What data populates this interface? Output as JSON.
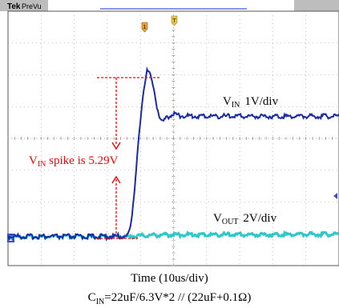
{
  "header": {
    "brand": "Tek",
    "mode": "PreVu"
  },
  "annotations": {
    "spike_prefix": "V",
    "spike_sub": "IN",
    "spike_suffix": " spike is 5.29V"
  },
  "channel_labels": [
    {
      "main": "V",
      "sub": "IN",
      "scale": "1V/div"
    },
    {
      "main": "V",
      "sub": "OUT",
      "scale": "2V/div"
    }
  ],
  "markers": {
    "ch1": "1",
    "trigger": "T"
  },
  "caption": {
    "line1": "Time (10us/div)",
    "line2_a": "C",
    "line2_sub": "IN",
    "line2_b": "=22uF/6.3V*2 // (22uF+0.1Ω)"
  },
  "colors": {
    "vin": "#1a2aa8",
    "vout": "#2fc8c8",
    "annotation": "#ff0000",
    "grid": "#9a9a9a",
    "header_bg": "#bdbdbd"
  },
  "chart_data": {
    "type": "line",
    "x_units": "us",
    "x_per_div": 10,
    "grid_divisions": [
      10,
      8
    ],
    "grid": true,
    "series": [
      {
        "name": "VIN",
        "units_per_div": "1V/div",
        "x": [
          0,
          10,
          20,
          30,
          36,
          37,
          38,
          39,
          40,
          41,
          42,
          43,
          44,
          45,
          46,
          47,
          48,
          50,
          52,
          55,
          60,
          70,
          80,
          90,
          100
        ],
        "y": [
          0,
          0,
          0,
          0,
          0,
          0.3,
          1.2,
          2.5,
          3.6,
          4.6,
          5.29,
          5.1,
          4.6,
          4.1,
          3.7,
          3.6,
          3.75,
          3.85,
          3.8,
          3.78,
          3.78,
          3.78,
          3.78,
          3.78,
          3.78
        ]
      },
      {
        "name": "VOUT",
        "units_per_div": "2V/div",
        "x": [
          0,
          10,
          20,
          30,
          36,
          40,
          45,
          50,
          60,
          70,
          80,
          90,
          100
        ],
        "y": [
          0,
          0,
          0,
          0,
          0,
          0.05,
          0.1,
          0.12,
          0.12,
          0.12,
          0.13,
          0.15,
          0.15
        ]
      }
    ],
    "annotations": [
      {
        "text": "VIN spike is 5.29V",
        "value": 5.29
      }
    ]
  }
}
